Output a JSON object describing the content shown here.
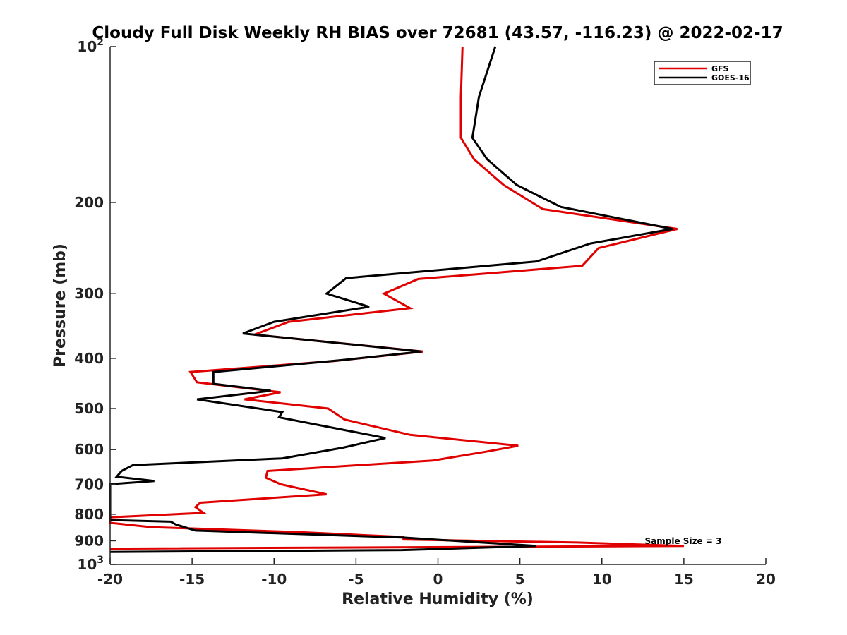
{
  "chart_data": {
    "type": "line",
    "title": "Cloudy Full Disk Weekly RH BIAS over 72681 (43.57, -116.23) @ 2022-02-17",
    "xlabel": "Relative Humidity (%)",
    "ylabel": "Pressure (mb)",
    "xlim": [
      -20,
      20
    ],
    "ylim": [
      100,
      1000
    ],
    "y_scale": "log",
    "y_reversed": true,
    "grid": false,
    "legend_position": "top-right",
    "x_ticks": [
      -20,
      -15,
      -10,
      -5,
      0,
      5,
      10,
      15,
      20
    ],
    "x_tick_labels": [
      "-20",
      "-15",
      "-10",
      "-5",
      "0",
      "5",
      "10",
      "15",
      "20"
    ],
    "y_ticks": [
      100,
      200,
      300,
      400,
      500,
      600,
      700,
      800,
      900,
      1000
    ],
    "y_tick_labels": [
      {
        "base": "10",
        "exp": "2"
      },
      {
        "base": "200"
      },
      {
        "base": "300"
      },
      {
        "base": "400"
      },
      {
        "base": "500"
      },
      {
        "base": "600"
      },
      {
        "base": "700"
      },
      {
        "base": "800"
      },
      {
        "base": "900"
      },
      {
        "base": "10",
        "exp": "3"
      }
    ],
    "annotation": "Sample Size = 3",
    "series": [
      {
        "name": "GFS",
        "color": "#e00000",
        "points": [
          [
            1.5,
            100
          ],
          [
            1.4,
            125
          ],
          [
            1.4,
            150
          ],
          [
            2.2,
            165
          ],
          [
            4.0,
            185
          ],
          [
            6.4,
            206
          ],
          [
            14.6,
            225
          ],
          [
            9.8,
            245
          ],
          [
            8.8,
            265
          ],
          [
            -1.2,
            281
          ],
          [
            -3.3,
            300
          ],
          [
            -1.7,
            320
          ],
          [
            -9.1,
            340
          ],
          [
            -11.2,
            360
          ],
          [
            -0.9,
            388
          ],
          [
            -6.4,
            405
          ],
          [
            -15.1,
            425
          ],
          [
            -14.7,
            445
          ],
          [
            -9.6,
            465
          ],
          [
            -11.8,
            480
          ],
          [
            -6.7,
            500
          ],
          [
            -5.7,
            525
          ],
          [
            -1.7,
            562
          ],
          [
            4.9,
            590
          ],
          [
            2.9,
            606
          ],
          [
            -0.3,
            630
          ],
          [
            -10.4,
            660
          ],
          [
            -10.5,
            680
          ],
          [
            -9.6,
            700
          ],
          [
            -6.8,
            732
          ],
          [
            -14.5,
            760
          ],
          [
            -14.8,
            775
          ],
          [
            -14.3,
            795
          ],
          [
            -20.0,
            811
          ],
          [
            -20.0,
            831
          ],
          [
            -17.5,
            847
          ],
          [
            -8.5,
            866
          ],
          [
            -2.1,
            885
          ],
          [
            -2.1,
            895
          ],
          [
            8.5,
            907
          ],
          [
            15.0,
            921
          ],
          [
            -20.0,
            932
          ]
        ]
      },
      {
        "name": "GOES-16",
        "color": "#000000",
        "points": [
          [
            3.5,
            100
          ],
          [
            2.5,
            125
          ],
          [
            2.1,
            150
          ],
          [
            3.0,
            165
          ],
          [
            4.8,
            185
          ],
          [
            7.5,
            204
          ],
          [
            14.3,
            225
          ],
          [
            9.3,
            240
          ],
          [
            6.0,
            260
          ],
          [
            -5.6,
            280
          ],
          [
            -6.8,
            300
          ],
          [
            -4.2,
            318
          ],
          [
            -10.0,
            340
          ],
          [
            -11.9,
            358
          ],
          [
            -1.0,
            388
          ],
          [
            -5.8,
            403
          ],
          [
            -13.7,
            425
          ],
          [
            -13.7,
            448
          ],
          [
            -10.2,
            462
          ],
          [
            -14.7,
            480
          ],
          [
            -9.5,
            508
          ],
          [
            -9.7,
            520
          ],
          [
            -3.2,
            570
          ],
          [
            -5.8,
            595
          ],
          [
            -9.5,
            624
          ],
          [
            -18.6,
            643
          ],
          [
            -19.3,
            660
          ],
          [
            -19.6,
            677
          ],
          [
            -17.3,
            690
          ],
          [
            -20.0,
            700
          ],
          [
            -20.0,
            821
          ],
          [
            -16.3,
            827
          ],
          [
            -16.0,
            837
          ],
          [
            -14.8,
            860
          ],
          [
            -2.2,
            887
          ],
          [
            6.0,
            921
          ],
          [
            -2.2,
            938
          ],
          [
            -20.0,
            946
          ]
        ]
      }
    ]
  }
}
